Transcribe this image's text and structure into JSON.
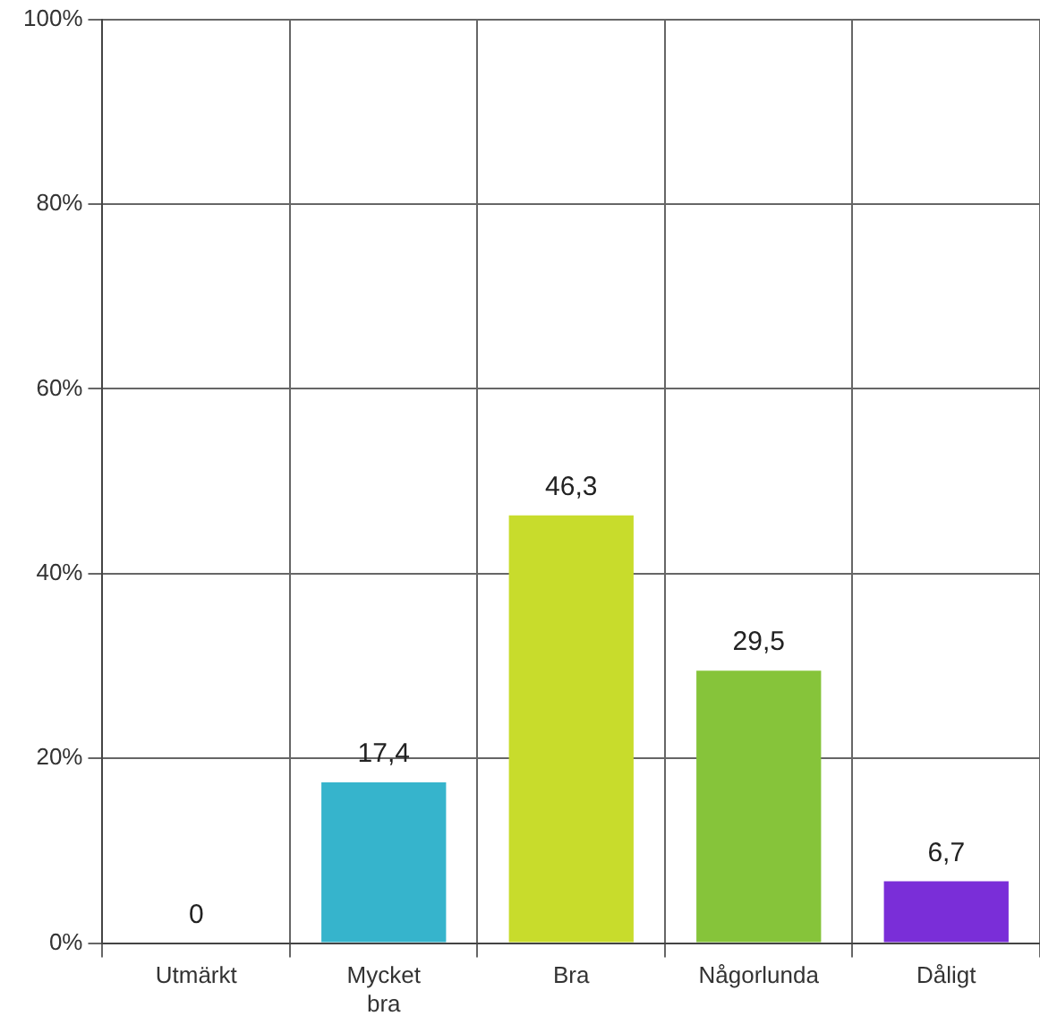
{
  "chart_data": {
    "type": "bar",
    "categories": [
      "Utmärkt",
      "Mycket bra",
      "Bra",
      "Någorlunda",
      "Dåligt"
    ],
    "values": [
      0,
      17.4,
      46.3,
      29.5,
      6.7
    ],
    "colors": [
      "#e08a2c",
      "#36b4cc",
      "#c8dc2c",
      "#86c43a",
      "#7a2ed8"
    ],
    "ylim": [
      0,
      100
    ],
    "yticks": [
      {
        "value": 0,
        "label": "0%"
      },
      {
        "value": 20,
        "label": "20%"
      },
      {
        "value": 40,
        "label": "40%"
      },
      {
        "value": 60,
        "label": "60%"
      },
      {
        "value": 80,
        "label": "80%"
      },
      {
        "value": 100,
        "label": "100%"
      }
    ],
    "value_labels": [
      "0",
      "17,4",
      "46,3",
      "29,5",
      "6,7"
    ],
    "grid": true
  }
}
